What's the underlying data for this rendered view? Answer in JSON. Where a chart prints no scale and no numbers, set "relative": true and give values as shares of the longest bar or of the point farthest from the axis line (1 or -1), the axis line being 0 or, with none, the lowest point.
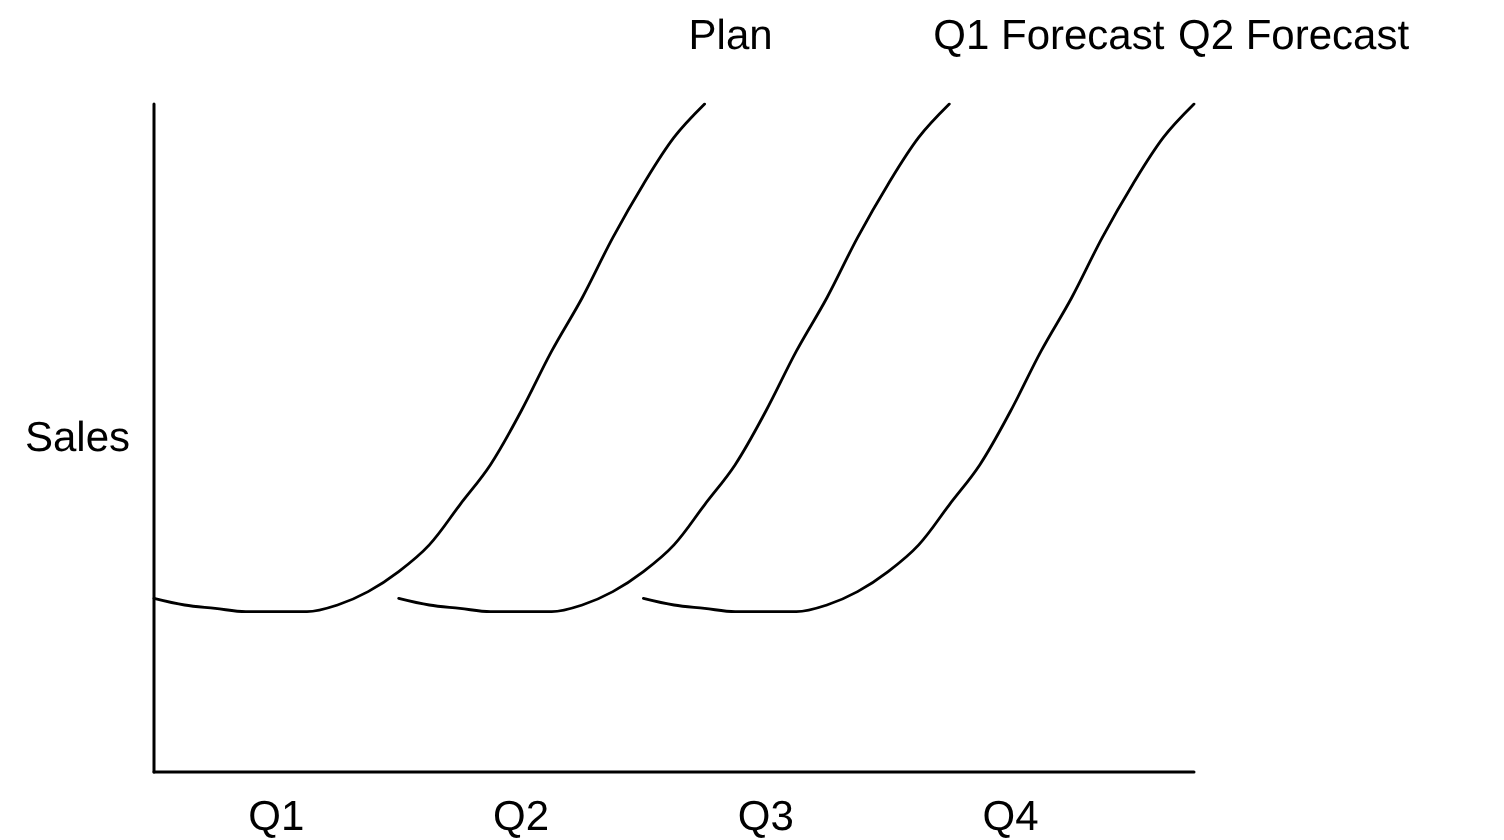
{
  "chart_data": {
    "type": "line",
    "ylabel": "Sales",
    "relative": true,
    "categories": [
      null,
      null,
      null,
      null,
      "Q1",
      null,
      null,
      null,
      null,
      null,
      null,
      null,
      "Q2",
      null,
      null,
      null,
      null,
      null,
      null,
      null,
      "Q3",
      null,
      null,
      null,
      null,
      null,
      null,
      null,
      "Q4",
      null,
      null,
      null,
      null,
      null,
      null
    ],
    "series": [
      {
        "name": "Plan",
        "color": "#000000",
        "values": [
          0.26,
          0.25,
          0.245,
          0.24,
          0.24,
          0.24,
          0.25,
          0.27,
          0.3,
          0.34,
          0.4,
          0.46,
          0.54,
          0.63,
          0.71,
          0.8,
          0.88,
          0.95,
          1,
          null,
          null,
          null,
          null,
          null,
          null,
          null,
          null,
          null,
          null,
          null,
          null,
          null,
          null,
          null,
          null
        ]
      },
      {
        "name": "Q1 Forecast",
        "color": "#000000",
        "values": [
          null,
          null,
          null,
          null,
          null,
          null,
          null,
          null,
          0.26,
          0.25,
          0.245,
          0.24,
          0.24,
          0.24,
          0.25,
          0.27,
          0.3,
          0.34,
          0.4,
          0.46,
          0.54,
          0.63,
          0.71,
          0.8,
          0.88,
          0.95,
          1,
          null,
          null,
          null,
          null,
          null,
          null,
          null,
          null
        ]
      },
      {
        "name": "Q2 Forecast",
        "color": "#000000",
        "values": [
          null,
          null,
          null,
          null,
          null,
          null,
          null,
          null,
          null,
          null,
          null,
          null,
          null,
          null,
          null,
          null,
          0.26,
          0.25,
          0.245,
          0.24,
          0.24,
          0.24,
          0.25,
          0.27,
          0.3,
          0.34,
          0.4,
          0.46,
          0.54,
          0.63,
          0.71,
          0.8,
          0.88,
          0.95,
          1
        ]
      }
    ],
    "legend": false,
    "marker": "none",
    "line_style": "solid"
  }
}
